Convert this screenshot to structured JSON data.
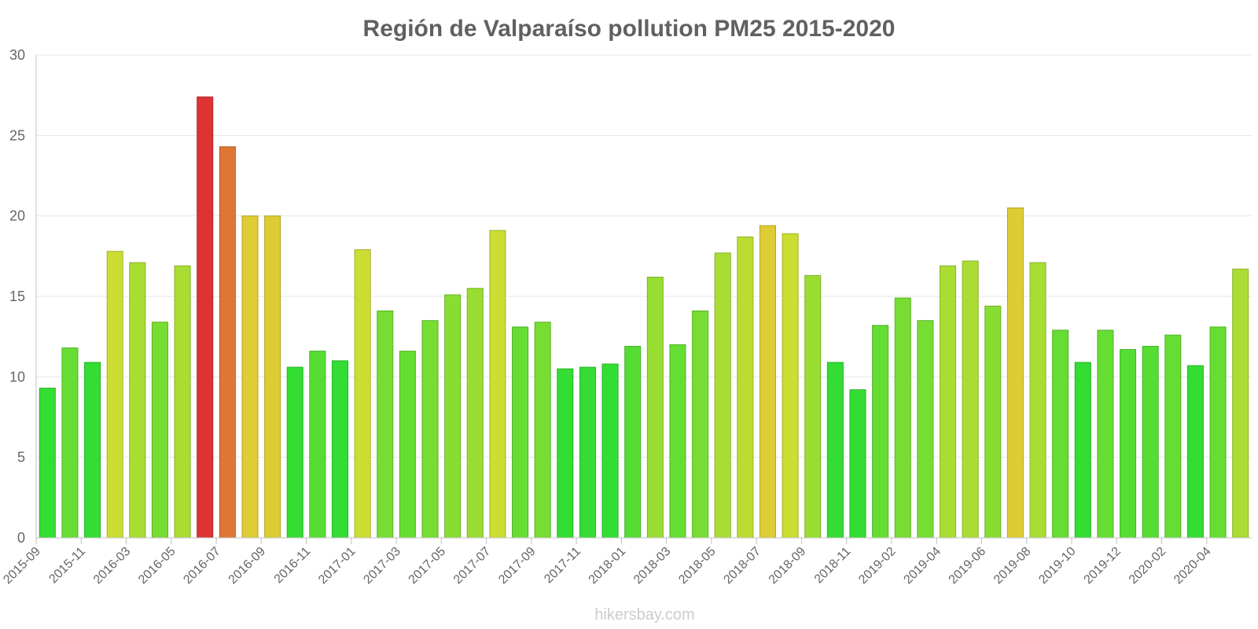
{
  "chart_data": {
    "type": "bar",
    "title": "Región de Valparaíso pollution PM25 2015-2020",
    "xlabel": "",
    "ylabel": "",
    "ylim": [
      0,
      30
    ],
    "yticks": [
      0,
      5,
      10,
      15,
      20,
      25,
      30
    ],
    "grid": true,
    "categories": [
      "2015-09",
      "2015-10",
      "2015-11",
      "2015-12",
      "2016-03",
      "2016-04",
      "2016-05",
      "2016-06",
      "2016-07",
      "2016-08",
      "2016-09",
      "2016-10",
      "2016-11",
      "2016-12",
      "2017-01",
      "2017-02",
      "2017-03",
      "2017-04",
      "2017-05",
      "2017-06",
      "2017-07",
      "2017-08",
      "2017-09",
      "2017-10",
      "2017-11",
      "2017-12",
      "2018-01",
      "2018-02",
      "2018-03",
      "2018-04",
      "2018-05",
      "2018-06",
      "2018-07",
      "2018-08",
      "2018-09",
      "2018-10",
      "2018-11",
      "2018-12",
      "2019-02",
      "2019-03",
      "2019-04",
      "2019-05",
      "2019-06",
      "2019-07",
      "2019-08",
      "2019-09",
      "2019-10",
      "2019-11",
      "2019-12",
      "2020-01",
      "2020-02",
      "2020-03",
      "2020-04",
      "2020-05"
    ],
    "visible_tick_labels": [
      "2015-09",
      "2015-11",
      "2016-03",
      "2016-05",
      "2016-07",
      "2016-09",
      "2016-11",
      "2017-01",
      "2017-03",
      "2017-05",
      "2017-07",
      "2017-09",
      "2017-11",
      "2018-01",
      "2018-03",
      "2018-05",
      "2018-07",
      "2018-09",
      "2018-11",
      "2019-02",
      "2019-04",
      "2019-06",
      "2019-08",
      "2019-10",
      "2019-12",
      "2020-02",
      "2020-04"
    ],
    "values": [
      9.3,
      11.8,
      10.9,
      17.8,
      17.1,
      13.4,
      16.9,
      27.4,
      24.3,
      20.0,
      20.0,
      10.6,
      11.6,
      11.0,
      17.9,
      14.1,
      11.6,
      13.5,
      15.1,
      15.5,
      19.1,
      13.1,
      13.4,
      10.5,
      10.6,
      10.8,
      11.9,
      16.2,
      12.0,
      14.1,
      17.7,
      18.7,
      19.4,
      18.9,
      16.3,
      10.9,
      9.2,
      13.2,
      14.9,
      13.5,
      16.9,
      17.2,
      14.4,
      20.5,
      17.1,
      12.9,
      10.9,
      12.9,
      11.7,
      11.9,
      12.6,
      10.7,
      13.1,
      16.7
    ],
    "colors": [
      "#33dd33",
      "#66dd33",
      "#33dd33",
      "#ccdd33",
      "#aadd33",
      "#77dd33",
      "#aadd33",
      "#dd3333",
      "#dd7733",
      "#ddcc33",
      "#ddcc33",
      "#33dd33",
      "#55dd33",
      "#33dd33",
      "#ccdd33",
      "#77dd33",
      "#66dd33",
      "#77dd33",
      "#88dd33",
      "#99dd33",
      "#ccdd33",
      "#66dd33",
      "#77dd33",
      "#33dd33",
      "#33dd33",
      "#33dd33",
      "#55dd33",
      "#99dd33",
      "#66dd33",
      "#77dd33",
      "#aadd33",
      "#bbdd33",
      "#ddcc33",
      "#ccdd33",
      "#99dd33",
      "#33dd33",
      "#33dd33",
      "#66dd33",
      "#77dd33",
      "#77dd33",
      "#aadd33",
      "#aadd33",
      "#88dd33",
      "#ddcc33",
      "#aadd33",
      "#66dd33",
      "#33dd33",
      "#66dd33",
      "#55dd33",
      "#55dd33",
      "#66dd33",
      "#33dd33",
      "#66dd33",
      "#aadd33"
    ]
  },
  "watermark": "hikersbay.com",
  "colors": {
    "title": "#606060",
    "tick": "#666666",
    "grid": "#e6e6e6",
    "axis": "#c0c0c0",
    "watermark": "#cccccc"
  }
}
